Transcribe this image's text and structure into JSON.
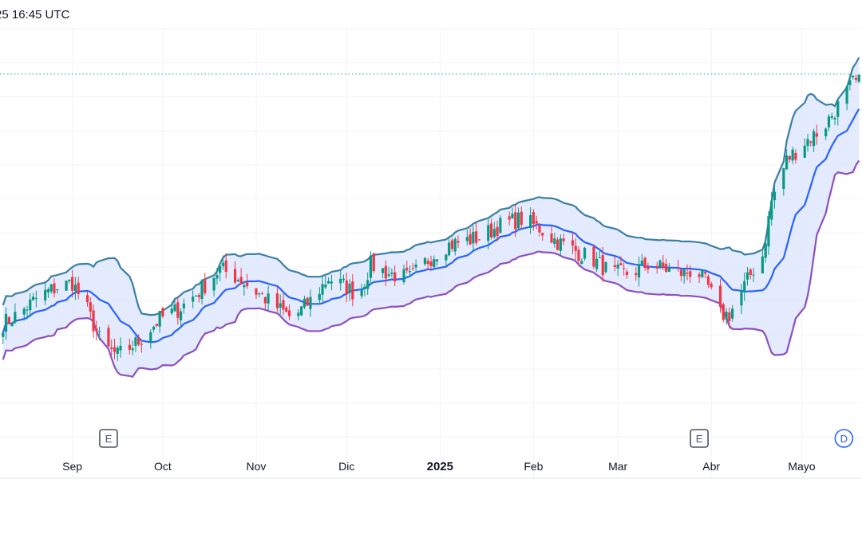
{
  "header": {
    "timestamp": "25 16:45 UTC"
  },
  "chart_data": {
    "type": "candlestick",
    "colors": {
      "up": "#089981",
      "down": "#f23645",
      "middle_band": "#2962ff",
      "upper_band": "#3a7fa5",
      "lower_band": "#8e4fc1",
      "band_fill": "#dbe4ff",
      "reference_line": "#26a69a"
    },
    "x_ticks": [
      {
        "label": "Sep",
        "day": 23,
        "bold": false
      },
      {
        "label": "Oct",
        "day": 53,
        "bold": false
      },
      {
        "label": "Nov",
        "day": 84,
        "bold": false
      },
      {
        "label": "Dic",
        "day": 114,
        "bold": false
      },
      {
        "label": "2025",
        "day": 145,
        "bold": true
      },
      {
        "label": "Feb",
        "day": 176,
        "bold": false
      },
      {
        "label": "Mar",
        "day": 204,
        "bold": false
      },
      {
        "label": "Abr",
        "day": 235,
        "bold": false
      },
      {
        "label": "Mayo",
        "day": 265,
        "bold": false
      }
    ],
    "events": [
      {
        "label": "E",
        "day": 35,
        "type": "earnings"
      },
      {
        "label": "E",
        "day": 231,
        "type": "earnings"
      },
      {
        "label": "D",
        "day": 279,
        "type": "dividend"
      }
    ],
    "price_path": [
      [
        0,
        55
      ],
      [
        5,
        57
      ],
      [
        12,
        61
      ],
      [
        18,
        63
      ],
      [
        23,
        64
      ],
      [
        28,
        58
      ],
      [
        33,
        50
      ],
      [
        38,
        48
      ],
      [
        45,
        51
      ],
      [
        52,
        56
      ],
      [
        58,
        58
      ],
      [
        65,
        62
      ],
      [
        72,
        67
      ],
      [
        78,
        65
      ],
      [
        84,
        62
      ],
      [
        90,
        59
      ],
      [
        96,
        56
      ],
      [
        102,
        60
      ],
      [
        108,
        65
      ],
      [
        114,
        63
      ],
      [
        118,
        61
      ],
      [
        122,
        68
      ],
      [
        128,
        66
      ],
      [
        135,
        65
      ],
      [
        141,
        69
      ],
      [
        146,
        72
      ],
      [
        152,
        73
      ],
      [
        158,
        74
      ],
      [
        166,
        77
      ],
      [
        172,
        78
      ],
      [
        178,
        76
      ],
      [
        184,
        73
      ],
      [
        190,
        71
      ],
      [
        196,
        69
      ],
      [
        202,
        66
      ],
      [
        208,
        66
      ],
      [
        214,
        68
      ],
      [
        220,
        67
      ],
      [
        226,
        66
      ],
      [
        230,
        67
      ],
      [
        234,
        63
      ],
      [
        238,
        57
      ],
      [
        241,
        57
      ],
      [
        245,
        62
      ],
      [
        249,
        67
      ],
      [
        252,
        70
      ],
      [
        255,
        82
      ],
      [
        260,
        91
      ],
      [
        266,
        95
      ],
      [
        272,
        98
      ],
      [
        278,
        104
      ],
      [
        282,
        108
      ]
    ],
    "band_width": 8,
    "reference_level": 110,
    "ylim": [
      30,
      120
    ],
    "xlim": [
      -1,
      285
    ]
  }
}
